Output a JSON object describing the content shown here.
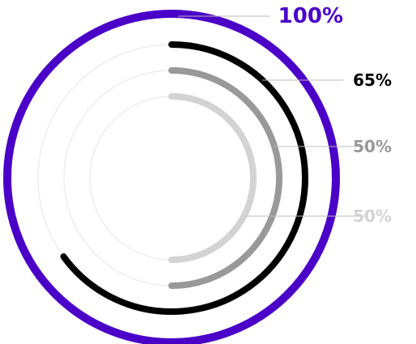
{
  "chart_data": {
    "type": "radial-progress",
    "series": [
      {
        "value": 100,
        "label": "100%",
        "color": "#4B00C8"
      },
      {
        "value": 65,
        "label": "65%",
        "color": "#000000"
      },
      {
        "value": 50,
        "label": "50%",
        "color": "#999999"
      },
      {
        "value": 50,
        "label": "50%",
        "color": "#D3D3D3"
      }
    ],
    "track_color": "#EDEDED",
    "leader_color": "#BDBDBD",
    "range": [
      0,
      100
    ]
  }
}
